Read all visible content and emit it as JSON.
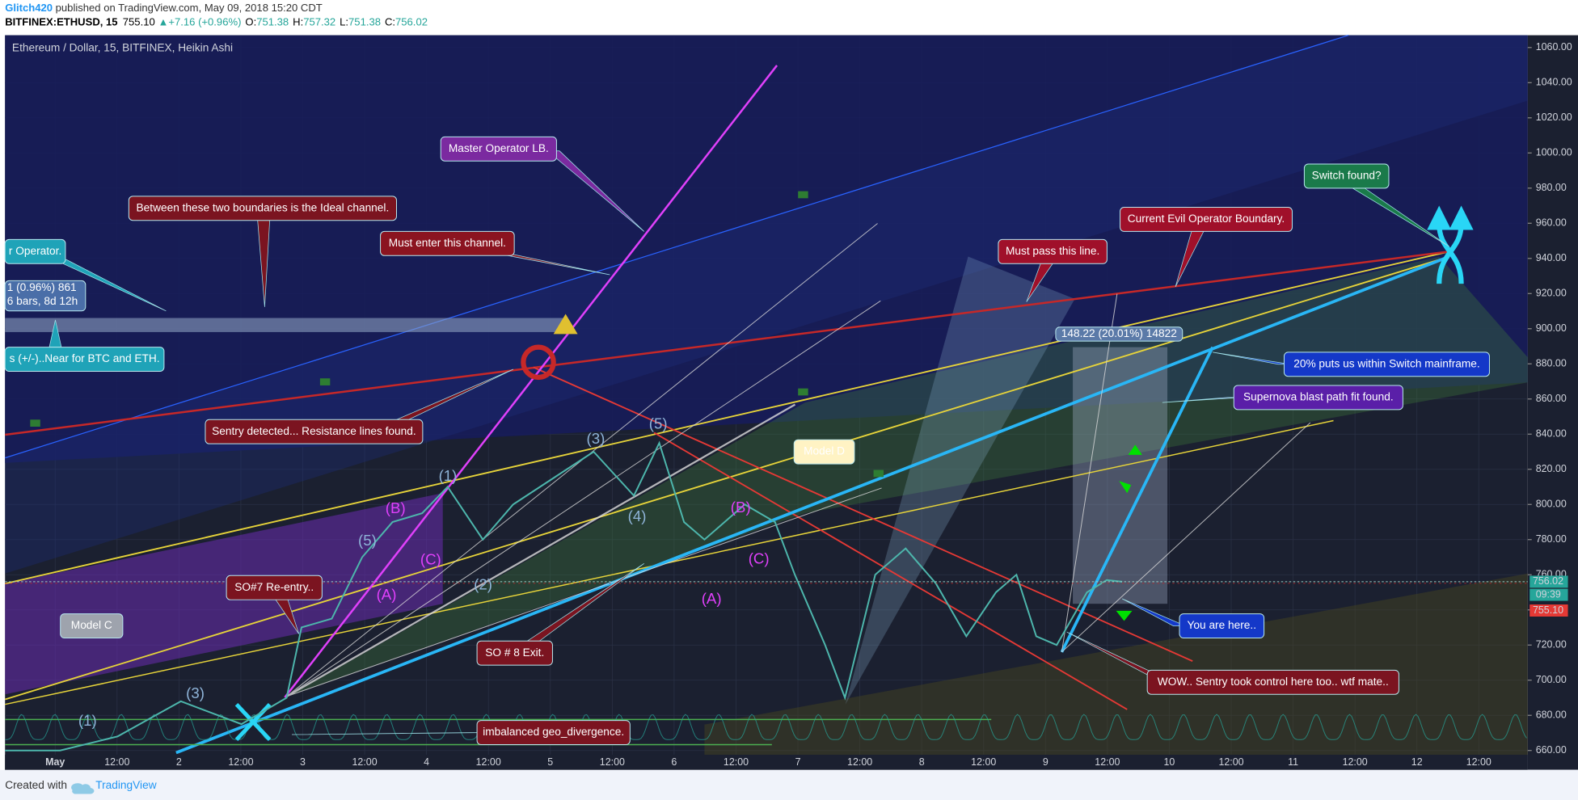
{
  "header": {
    "user": "Glitch420",
    "published": " published on TradingView.com, May 09, 2018 15:20 CDT",
    "symbol": "BITFINEX:ETHUSD, 15",
    "last": "755.10",
    "change": "+7.16 (+0.96%)",
    "o_label": "O:",
    "o": "751.38",
    "h_label": "H:",
    "h": "757.32",
    "l_label": "L:",
    "l": "751.38",
    "c_label": "C:",
    "c": "756.02"
  },
  "chart_data": {
    "type": "line",
    "title": "Ethereum / Dollar, 15, BITFINEX, Heikin Ashi",
    "xlim": [
      -0.81,
      23.79
    ],
    "xtick_labels": [
      "May",
      "12:00",
      "2",
      "12:00",
      "3",
      "12:00",
      "4",
      "12:00",
      "5",
      "12:00",
      "6",
      "12:00",
      "7",
      "12:00",
      "8",
      "12:00",
      "9",
      "12:00",
      "10",
      "12:00",
      "11",
      "12:00",
      "12",
      "12:00"
    ],
    "ylim": [
      649,
      1067
    ],
    "yticks": [
      {
        "value": 660,
        "label": "660.00"
      },
      {
        "value": 680,
        "label": "680.00"
      },
      {
        "value": 700,
        "label": "700.00"
      },
      {
        "value": 720,
        "label": "720.00"
      },
      {
        "value": 740,
        "label": "740.00"
      },
      {
        "value": 760,
        "label": "760.00"
      },
      {
        "value": 780,
        "label": "780.00"
      },
      {
        "value": 800,
        "label": "800.00"
      },
      {
        "value": 820,
        "label": "820.00"
      },
      {
        "value": 840,
        "label": "840.00"
      },
      {
        "value": 860,
        "label": "860.00"
      },
      {
        "value": 880,
        "label": "880.00"
      },
      {
        "value": 900,
        "label": "900.00"
      },
      {
        "value": 920,
        "label": "920.00"
      },
      {
        "value": 940,
        "label": "940.00"
      },
      {
        "value": 960,
        "label": "960.00"
      },
      {
        "value": 980,
        "label": "980.00"
      },
      {
        "value": 1000,
        "label": "1000.00"
      },
      {
        "value": 1020,
        "label": "1020.00"
      },
      {
        "value": 1040,
        "label": "1040.00"
      },
      {
        "value": 1060,
        "label": "1060.00"
      }
    ],
    "grid": true,
    "series": [
      {
        "name": "ETHUSD",
        "color": "#4db6ac",
        "x": [
          -0.81,
          0.08,
          1.01,
          2.03,
          3.01,
          3.74,
          3.98,
          4.47,
          4.96,
          5.45,
          5.93,
          6.34,
          6.91,
          7.4,
          8.05,
          8.7,
          9.35,
          9.76,
          10.16,
          10.49,
          11.14,
          11.63,
          11.95,
          12.44,
          12.76,
          13.25,
          13.74,
          14.23,
          14.72,
          15.2,
          15.53,
          15.85,
          16.18,
          16.67,
          16.99,
          17.24
        ],
        "values": [
          660,
          660,
          668,
          688,
          675,
          690,
          730,
          735,
          770,
          790,
          795,
          810,
          780,
          800,
          815,
          830,
          805,
          835,
          790,
          780,
          800,
          790,
          760,
          720,
          690,
          760,
          775,
          755,
          725,
          750,
          760,
          725,
          720,
          750,
          757,
          756
        ]
      }
    ],
    "price_badges": {
      "close": 756.02,
      "timer": "09:39",
      "last": {
        "value": 755.1,
        "label": "755.10"
      }
    },
    "callouts": [
      {
        "text": "Between these two boundaries is the Ideal channel."
      },
      {
        "text": "Master Operator LB."
      },
      {
        "text": "Must enter this channel."
      },
      {
        "text": "r Operator."
      },
      {
        "lines": [
          "1 (0.96%) 861",
          "6 bars, 8d 12h"
        ]
      },
      {
        "text": "s (+/-)..Near for BTC and ETH."
      },
      {
        "text": "Sentry detected... Resistance lines found."
      },
      {
        "text": "Model D"
      },
      {
        "text": "Must pass this line."
      },
      {
        "text": "Current Evil Operator Boundary."
      },
      {
        "text": "Switch found?"
      },
      {
        "text": "148.22 (20.01%) 14822"
      },
      {
        "text": "20% puts us within Switch mainframe."
      },
      {
        "text": "Supernova blast path fit found."
      },
      {
        "text": "You are here.."
      },
      {
        "text": "WOW.. Sentry took control here too.. wtf mate.."
      },
      {
        "text": "imbalanced geo_divergence."
      },
      {
        "text": "SO # 8 Exit."
      },
      {
        "text": "SO#7 Re-entry.."
      },
      {
        "text": "Model C"
      }
    ],
    "wave_labels": [
      "(1)",
      "(3)",
      "(5)",
      "(B)",
      "(C)",
      "(A)",
      "(1)",
      "(2)",
      "(3)",
      "(4)",
      "(5)",
      "(B)",
      "(C)",
      "(A)"
    ]
  },
  "footer": {
    "created": "Created with",
    "brand": "TradingView"
  }
}
